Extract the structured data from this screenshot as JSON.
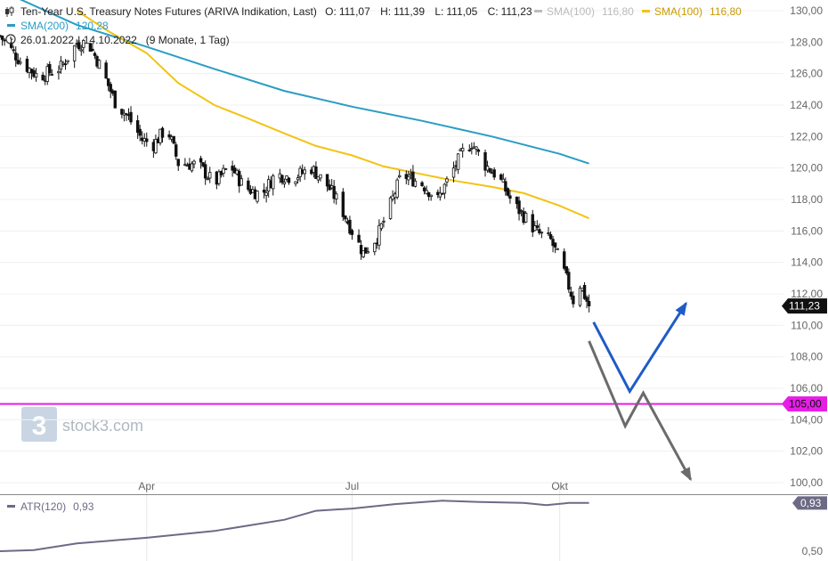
{
  "header": {
    "instrument": "Ten-Year U.S. Treasury Notes Futures (ARIVA Indikation, Last)",
    "open_label": "O:",
    "open": "111,07",
    "high_label": "H:",
    "high": "111,39",
    "low_label": "L:",
    "low": "111,05",
    "close_label": "C:",
    "close": "111,23",
    "sma100_gray_label": "SMA(100)",
    "sma100_gray_value": "116,80",
    "sma100_label": "SMA(100)",
    "sma100_value": "116,80",
    "sma200_label": "SMA(200)",
    "sma200_value": "120,28",
    "range": "26.01.2022 - 14.10.2022",
    "period": "(9 Monate, 1 Tag)"
  },
  "watermark": {
    "logo_char": "3",
    "text": "stock3.com"
  },
  "colors": {
    "candle": "#111111",
    "sma100": "#f2c314",
    "sma200": "#2a9dc4",
    "support": "#e61ee6",
    "arrow_up": "#1f5bc7",
    "arrow_down": "#6b6b6b",
    "atr": "#6d6a86"
  },
  "chart_data": [
    {
      "type": "candlestick",
      "title": "Ten-Year U.S. Treasury Notes Futures (ARIVA Indikation, Last)",
      "x_range": [
        "2022-01-26",
        "2022-10-14"
      ],
      "x_ticks": [
        {
          "label": "Apr",
          "date": "2022-04-01"
        },
        {
          "label": "Jul",
          "date": "2022-07-01"
        },
        {
          "label": "Okt",
          "date": "2022-10-01"
        }
      ],
      "y_ticks": [
        "130,00",
        "128,00",
        "126,00",
        "124,00",
        "122,00",
        "120,00",
        "118,00",
        "116,00",
        "114,00",
        "112,00",
        "110,00",
        "108,00",
        "106,00",
        "104,00",
        "102,00",
        "100,00"
      ],
      "ylim": [
        99.3,
        130.5
      ],
      "close_path": [
        {
          "date": "2022-01-26",
          "v": 128.4
        },
        {
          "date": "2022-02-04",
          "v": 126.8
        },
        {
          "date": "2022-02-12",
          "v": 125.8
        },
        {
          "date": "2022-02-22",
          "v": 126.4
        },
        {
          "date": "2022-03-01",
          "v": 127.9
        },
        {
          "date": "2022-03-06",
          "v": 128.0
        },
        {
          "date": "2022-03-12",
          "v": 126.3
        },
        {
          "date": "2022-03-18",
          "v": 124.2
        },
        {
          "date": "2022-03-24",
          "v": 123.2
        },
        {
          "date": "2022-03-30",
          "v": 121.8
        },
        {
          "date": "2022-04-04",
          "v": 121.5
        },
        {
          "date": "2022-04-10",
          "v": 122.6
        },
        {
          "date": "2022-04-15",
          "v": 120.3
        },
        {
          "date": "2022-04-24",
          "v": 120.2
        },
        {
          "date": "2022-05-01",
          "v": 119.0
        },
        {
          "date": "2022-05-08",
          "v": 120.2
        },
        {
          "date": "2022-05-14",
          "v": 118.8
        },
        {
          "date": "2022-05-22",
          "v": 118.3
        },
        {
          "date": "2022-05-28",
          "v": 119.6
        },
        {
          "date": "2022-06-05",
          "v": 119.4
        },
        {
          "date": "2022-06-13",
          "v": 120.0
        },
        {
          "date": "2022-06-20",
          "v": 118.9
        },
        {
          "date": "2022-06-25",
          "v": 117.8
        },
        {
          "date": "2022-07-01",
          "v": 116.0
        },
        {
          "date": "2022-07-06",
          "v": 114.6
        },
        {
          "date": "2022-07-12",
          "v": 115.6
        },
        {
          "date": "2022-07-17",
          "v": 117.3
        },
        {
          "date": "2022-07-23",
          "v": 119.6
        },
        {
          "date": "2022-08-01",
          "v": 119.0
        },
        {
          "date": "2022-08-08",
          "v": 118.0
        },
        {
          "date": "2022-08-13",
          "v": 119.4
        },
        {
          "date": "2022-08-19",
          "v": 121.0
        },
        {
          "date": "2022-08-23",
          "v": 121.6
        },
        {
          "date": "2022-08-29",
          "v": 120.2
        },
        {
          "date": "2022-09-04",
          "v": 119.4
        },
        {
          "date": "2022-09-10",
          "v": 117.8
        },
        {
          "date": "2022-09-16",
          "v": 116.8
        },
        {
          "date": "2022-09-21",
          "v": 115.9
        },
        {
          "date": "2022-09-27",
          "v": 115.4
        },
        {
          "date": "2022-10-02",
          "v": 113.8
        },
        {
          "date": "2022-10-07",
          "v": 111.6
        },
        {
          "date": "2022-10-10",
          "v": 112.6
        },
        {
          "date": "2022-10-14",
          "v": 111.2
        }
      ],
      "last_close": 111.23,
      "last_close_label": "111,23",
      "series": [
        {
          "name": "SMA(200)",
          "color": "#2a9dc4",
          "points": [
            {
              "date": "2022-01-26",
              "v": 131.3
            },
            {
              "date": "2022-03-01",
              "v": 129.1
            },
            {
              "date": "2022-04-01",
              "v": 127.7
            },
            {
              "date": "2022-05-01",
              "v": 126.3
            },
            {
              "date": "2022-06-01",
              "v": 124.9
            },
            {
              "date": "2022-07-01",
              "v": 123.9
            },
            {
              "date": "2022-08-01",
              "v": 123.0
            },
            {
              "date": "2022-09-01",
              "v": 122.0
            },
            {
              "date": "2022-10-01",
              "v": 120.9
            },
            {
              "date": "2022-10-14",
              "v": 120.28
            }
          ]
        },
        {
          "name": "SMA(100)",
          "color": "#f2c314",
          "points": [
            {
              "date": "2022-03-01",
              "v": 130.0
            },
            {
              "date": "2022-03-15",
              "v": 128.7
            },
            {
              "date": "2022-04-01",
              "v": 127.3
            },
            {
              "date": "2022-04-15",
              "v": 125.4
            },
            {
              "date": "2022-05-01",
              "v": 124.0
            },
            {
              "date": "2022-05-15",
              "v": 123.2
            },
            {
              "date": "2022-06-01",
              "v": 122.2
            },
            {
              "date": "2022-06-15",
              "v": 121.4
            },
            {
              "date": "2022-07-01",
              "v": 120.8
            },
            {
              "date": "2022-07-15",
              "v": 120.1
            },
            {
              "date": "2022-08-01",
              "v": 119.6
            },
            {
              "date": "2022-08-15",
              "v": 119.2
            },
            {
              "date": "2022-09-01",
              "v": 118.8
            },
            {
              "date": "2022-09-15",
              "v": 118.4
            },
            {
              "date": "2022-10-01",
              "v": 117.6
            },
            {
              "date": "2022-10-14",
              "v": 116.8
            }
          ]
        }
      ],
      "support_level": 105.0,
      "support_label": "105,00",
      "projections": [
        {
          "color": "#1f5bc7",
          "points": [
            {
              "date": "2022-10-16",
              "v": 110.2
            },
            {
              "date": "2022-11-01",
              "v": 105.8
            },
            {
              "date": "2022-11-26",
              "v": 111.4
            }
          ]
        },
        {
          "color": "#6b6b6b",
          "points": [
            {
              "date": "2022-10-14",
              "v": 109.0
            },
            {
              "date": "2022-10-30",
              "v": 103.6
            },
            {
              "date": "2022-11-07",
              "v": 105.7
            },
            {
              "date": "2022-11-28",
              "v": 100.2
            }
          ]
        }
      ]
    },
    {
      "type": "line",
      "series": [
        {
          "name": "ATR(120)",
          "color": "#6d6a86",
          "points": [
            {
              "date": "2022-01-26",
              "v": 0.5
            },
            {
              "date": "2022-02-10",
              "v": 0.51
            },
            {
              "date": "2022-03-01",
              "v": 0.57
            },
            {
              "date": "2022-04-01",
              "v": 0.62
            },
            {
              "date": "2022-05-01",
              "v": 0.68
            },
            {
              "date": "2022-06-01",
              "v": 0.78
            },
            {
              "date": "2022-06-15",
              "v": 0.86
            },
            {
              "date": "2022-07-01",
              "v": 0.88
            },
            {
              "date": "2022-07-20",
              "v": 0.92
            },
            {
              "date": "2022-08-10",
              "v": 0.95
            },
            {
              "date": "2022-08-25",
              "v": 0.94
            },
            {
              "date": "2022-09-15",
              "v": 0.93
            },
            {
              "date": "2022-09-25",
              "v": 0.91
            },
            {
              "date": "2022-10-05",
              "v": 0.93
            },
            {
              "date": "2022-10-14",
              "v": 0.93
            }
          ]
        }
      ],
      "value_label": "0,93",
      "last_value": 0.93,
      "y_ticks": [
        "0,50"
      ],
      "ylim": [
        0.47,
        1.0
      ]
    }
  ]
}
